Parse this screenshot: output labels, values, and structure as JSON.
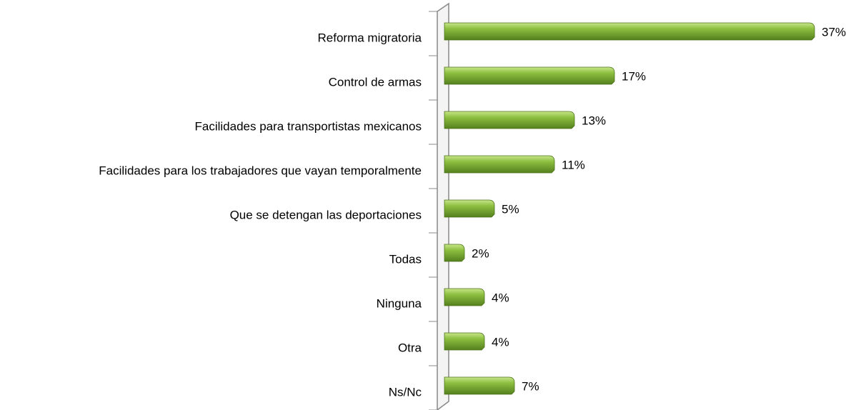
{
  "chart_data": {
    "type": "bar",
    "orientation": "horizontal",
    "categories": [
      "Reforma migratoria",
      "Control de armas",
      "Facilidades para transportistas mexicanos",
      "Facilidades para los trabajadores que vayan temporalmente",
      "Que se detengan las deportaciones",
      "Todas",
      "Ninguna",
      "Otra",
      "Ns/Nc"
    ],
    "values": [
      37,
      17,
      13,
      11,
      5,
      2,
      4,
      4,
      7
    ],
    "value_labels": [
      "37%",
      "17%",
      "13%",
      "11%",
      "5%",
      "2%",
      "4%",
      "4%",
      "7%"
    ],
    "color": "#8cbf3f"
  }
}
